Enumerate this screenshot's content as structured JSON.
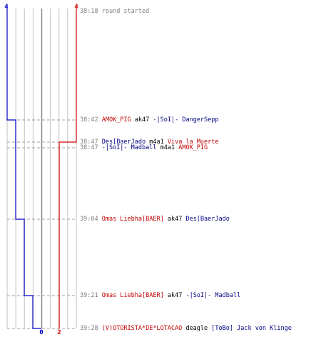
{
  "chart_data": {
    "type": "line",
    "title": "",
    "xlabel": "",
    "ylabel": "",
    "axis": {
      "top_labels": [
        "4",
        "4"
      ],
      "bottom_labels": [
        "0",
        "2"
      ]
    },
    "colors": {
      "blue": "#0000c0",
      "red": "#d00000",
      "grid": "#c0c0c0",
      "dashed": "#a0a0a0",
      "timestamp": "#808080",
      "blue_text": "#000080",
      "red_text": "#c00000"
    },
    "series": [
      {
        "color": "blue",
        "steps": [
          4,
          3,
          2,
          1,
          0
        ]
      },
      {
        "color": "red",
        "steps": [
          4,
          3,
          2
        ]
      }
    ],
    "x_values": [
      0,
      1,
      2,
      3,
      4
    ],
    "events": [
      {
        "time": "38:18",
        "text": "round started",
        "killer": "",
        "killer_team": "",
        "weapon": "",
        "victim": "",
        "victim_team": ""
      },
      {
        "time": "38:42",
        "text": "",
        "killer": "AMOK_PIG",
        "killer_team": "red",
        "weapon": "ak47",
        "victim": "-|SoI|- DangerSepp",
        "victim_team": "blue"
      },
      {
        "time": "38:47",
        "text": "",
        "killer": "Des[BaerJado",
        "killer_team": "blue",
        "weapon": "m4a1",
        "victim": "Viva la Muerte",
        "victim_team": "red"
      },
      {
        "time": "38:47",
        "text": "",
        "killer": "-|SoI|- Madball",
        "killer_team": "blue",
        "weapon": "m4a1",
        "victim": "AMOK_PIG",
        "victim_team": "red"
      },
      {
        "time": "39:04",
        "text": "",
        "killer": "Omas Liebha[BAER]",
        "killer_team": "red",
        "weapon": "ak47",
        "victim": "Des[BaerJado",
        "victim_team": "blue"
      },
      {
        "time": "39:21",
        "text": "",
        "killer": "Omas Liebha[BAER]",
        "killer_team": "red",
        "weapon": "ak47",
        "victim": "-|SoI|- Madball",
        "victim_team": "blue"
      },
      {
        "time": "39:28",
        "text": "",
        "killer": "(V)OTORISTA*DE*LOTACAO",
        "killer_team": "red",
        "weapon": "deagle",
        "victim": "[ToBo] Jack von Klinge",
        "victim_team": "blue"
      }
    ]
  }
}
